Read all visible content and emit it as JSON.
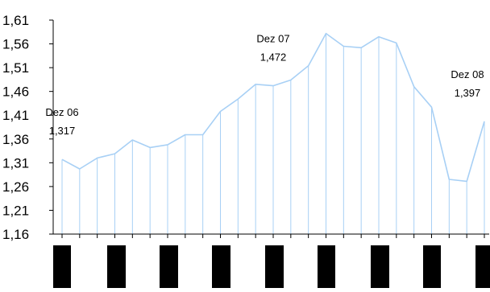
{
  "chart_data": {
    "type": "area",
    "title": "",
    "xlabel": "",
    "ylabel": "",
    "ylim": [
      1.16,
      1.61
    ],
    "yticks": [
      "1,16",
      "1,21",
      "1,26",
      "1,31",
      "1,36",
      "1,41",
      "1,46",
      "1,51",
      "1,56",
      "1,61"
    ],
    "grid": false,
    "legend": "none",
    "x_tick_labels_rendered_as": "black blocks (redacted)",
    "values": [
      1.317,
      1.297,
      1.32,
      1.329,
      1.358,
      1.342,
      1.348,
      1.369,
      1.369,
      1.418,
      1.444,
      1.475,
      1.472,
      1.484,
      1.514,
      1.582,
      1.555,
      1.552,
      1.575,
      1.562,
      1.47,
      1.427,
      1.275,
      1.271,
      1.397
    ],
    "annotations": [
      {
        "index": 0,
        "label": "Dez 06",
        "value_label": "1,317"
      },
      {
        "index": 12,
        "label": "Dez 07",
        "value_label": "1,472"
      },
      {
        "index": 24,
        "label": "Dez 08",
        "value_label": "1,397"
      }
    ],
    "colors": {
      "line": "#a8d0f5",
      "axis": "#000000",
      "redaction": "#000000"
    }
  }
}
